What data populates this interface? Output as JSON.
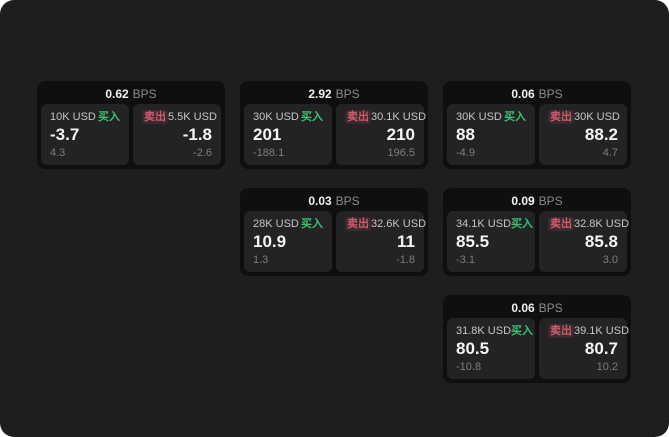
{
  "labels": {
    "bps_unit": "BPS",
    "buy": "买入",
    "sell": "卖出"
  },
  "colors": {
    "window_bg": "#1e1e1f",
    "card_bg": "#0f0f10",
    "panel_bg": "#232325",
    "buy_green": "#3cc26f",
    "sell_red": "#cf5c6c"
  },
  "cards": [
    {
      "bps": "0.62",
      "grid": {
        "row": 1,
        "col": 1
      },
      "buy": {
        "amount": "10K USD",
        "price": "-3.7",
        "delta": "4.3"
      },
      "sell": {
        "amount": "5.5K USD",
        "price": "-1.8",
        "delta": "-2.6"
      }
    },
    {
      "bps": "2.92",
      "grid": {
        "row": 1,
        "col": 2
      },
      "buy": {
        "amount": "30K USD",
        "price": "201",
        "delta": "-188.1"
      },
      "sell": {
        "amount": "30.1K USD",
        "price": "210",
        "delta": "196.5"
      }
    },
    {
      "bps": "0.06",
      "grid": {
        "row": 1,
        "col": 3
      },
      "buy": {
        "amount": "30K USD",
        "price": "88",
        "delta": "-4.9"
      },
      "sell": {
        "amount": "30K USD",
        "price": "88.2",
        "delta": "4.7"
      }
    },
    {
      "bps": "0.03",
      "grid": {
        "row": 2,
        "col": 2
      },
      "buy": {
        "amount": "28K USD",
        "price": "10.9",
        "delta": "1.3"
      },
      "sell": {
        "amount": "32.6K USD",
        "price": "11",
        "delta": "-1.8"
      }
    },
    {
      "bps": "0.09",
      "grid": {
        "row": 2,
        "col": 3
      },
      "buy": {
        "amount": "34.1K USD",
        "price": "85.5",
        "delta": "-3.1"
      },
      "sell": {
        "amount": "32.8K USD",
        "price": "85.8",
        "delta": "3.0"
      }
    },
    {
      "bps": "0.06",
      "grid": {
        "row": 3,
        "col": 3
      },
      "buy": {
        "amount": "31.8K USD",
        "price": "80.5",
        "delta": "-10.8"
      },
      "sell": {
        "amount": "39.1K USD",
        "price": "80.7",
        "delta": "10.2"
      }
    }
  ]
}
